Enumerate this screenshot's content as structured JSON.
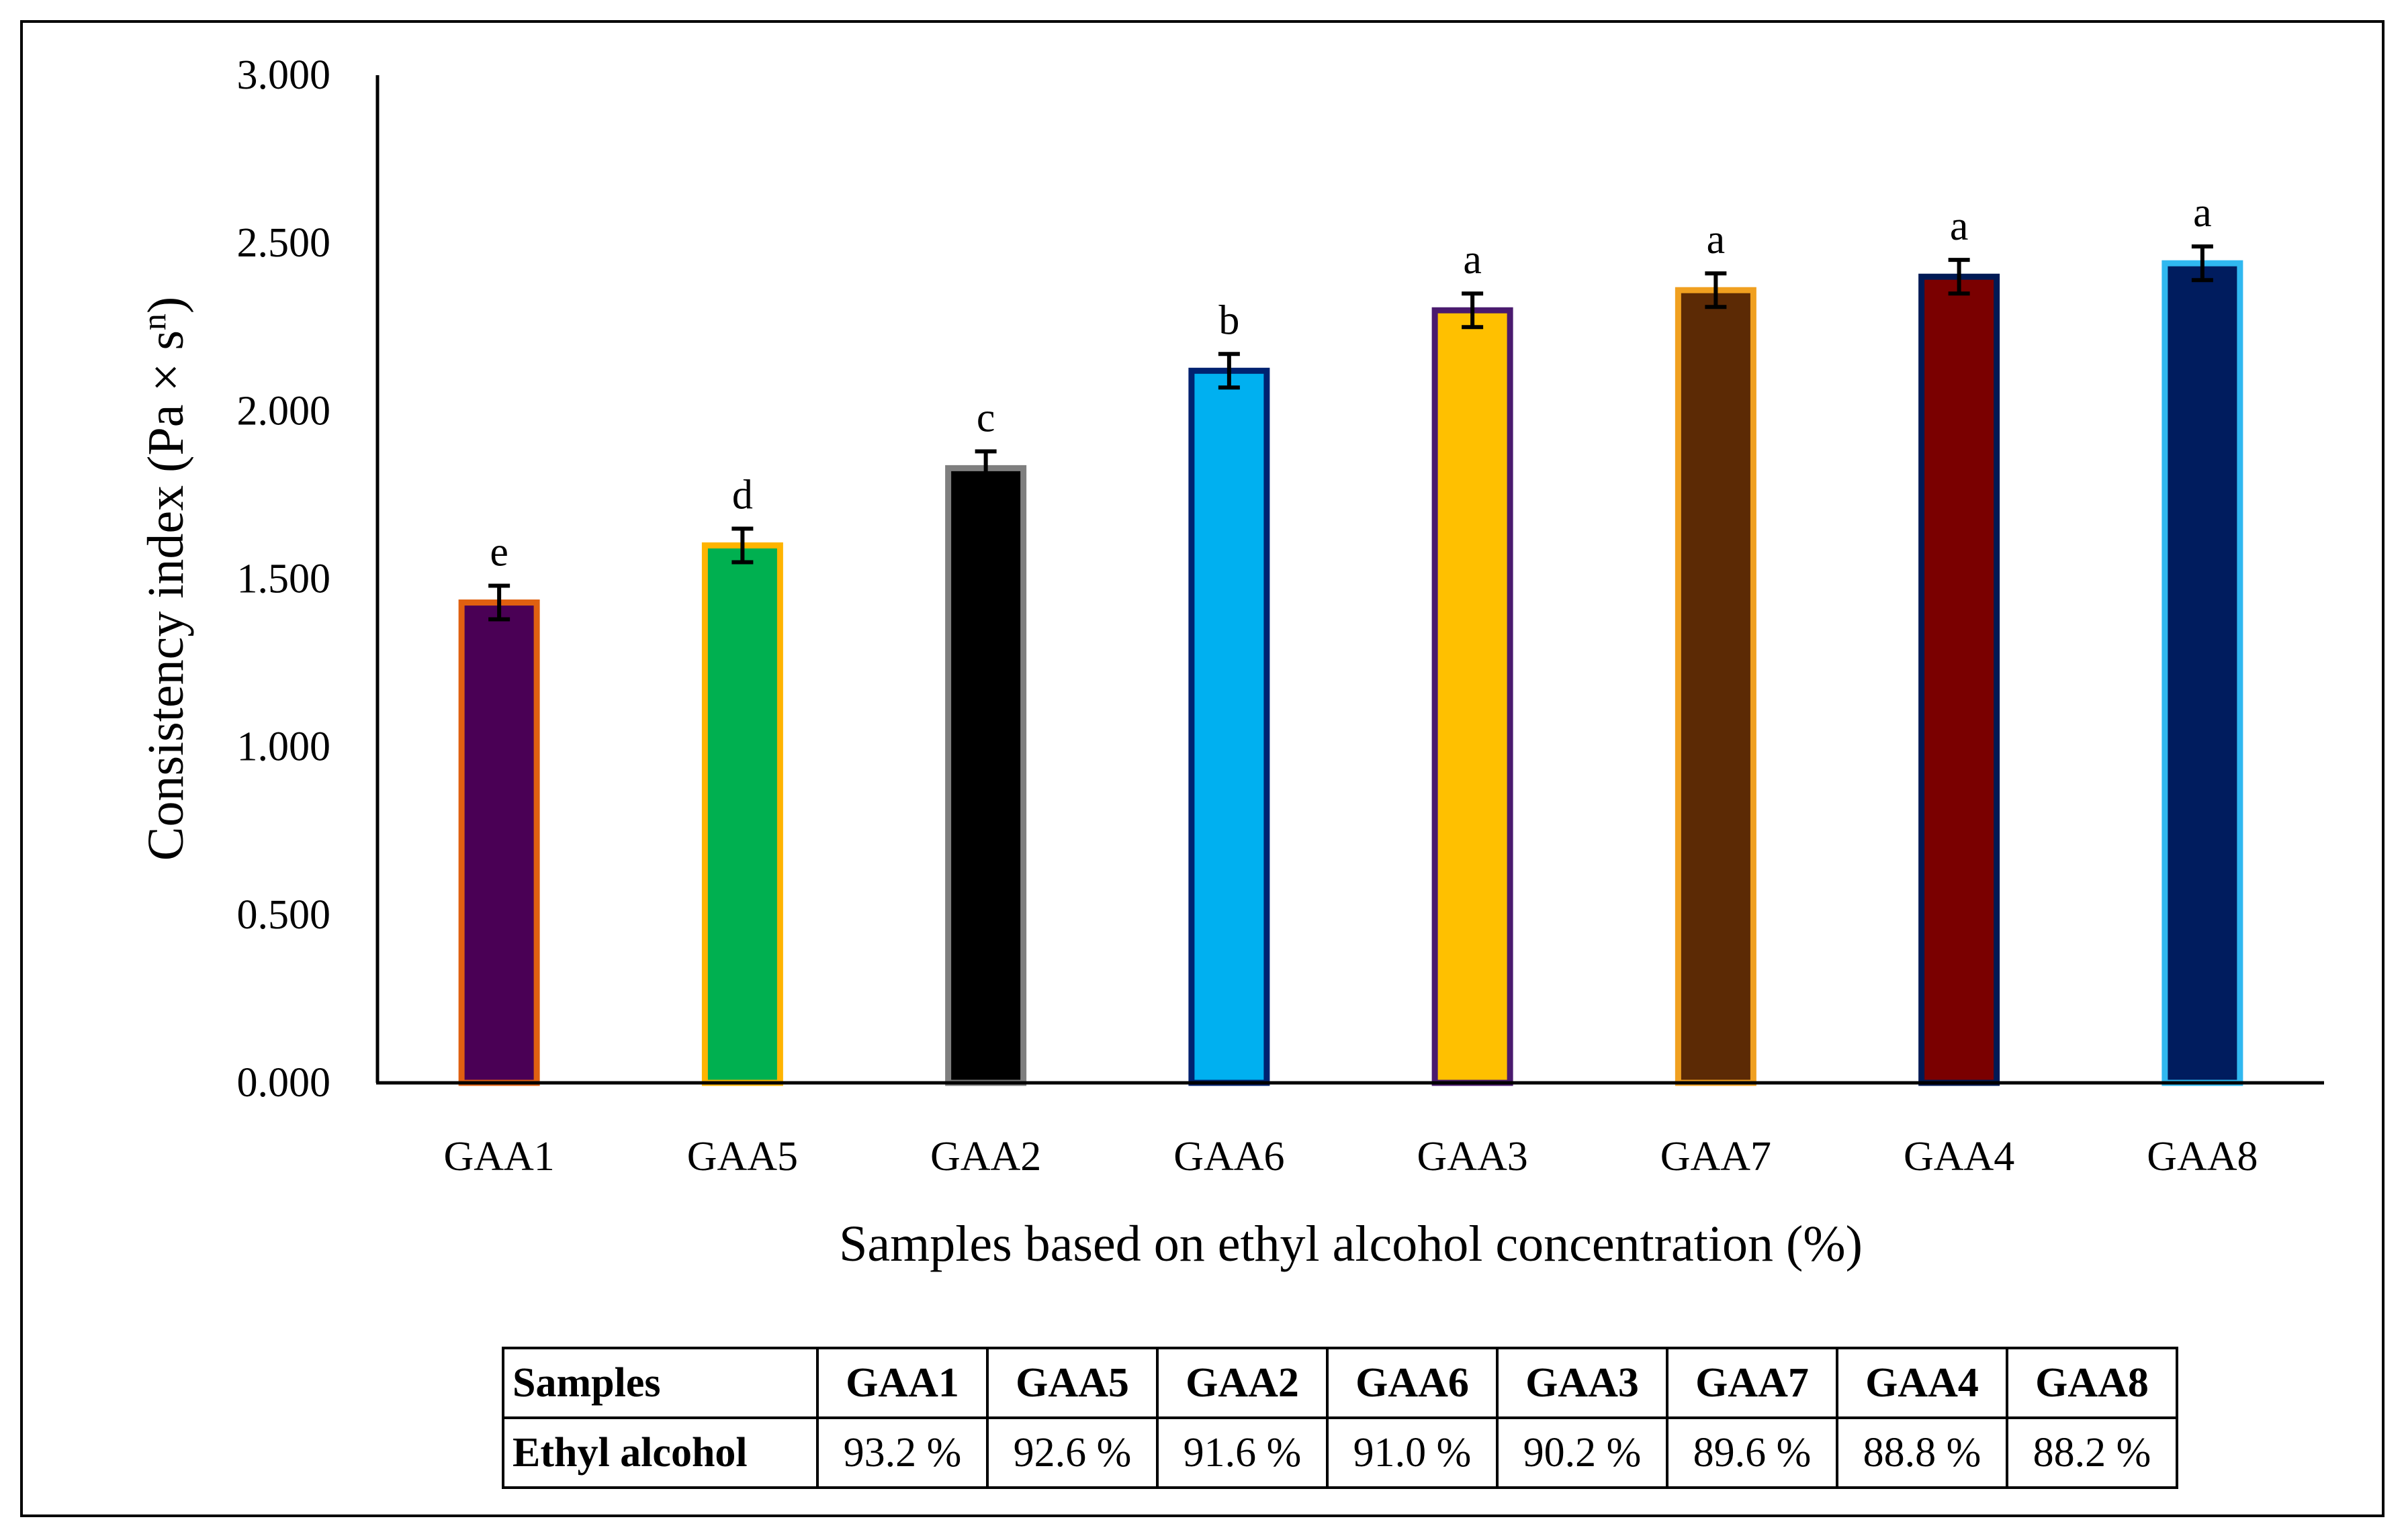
{
  "chart_data": {
    "type": "bar",
    "categories": [
      "GAA1",
      "GAA5",
      "GAA2",
      "GAA6",
      "GAA3",
      "GAA7",
      "GAA4",
      "GAA8"
    ],
    "values": [
      1.43,
      1.6,
      1.83,
      2.12,
      2.3,
      2.36,
      2.4,
      2.44
    ],
    "errors": [
      0.05,
      0.05,
      0.05,
      0.05,
      0.05,
      0.05,
      0.05,
      0.05
    ],
    "significance_letters": [
      "e",
      "d",
      "c",
      "b",
      "a",
      "a",
      "a",
      "a"
    ],
    "fill_colors": [
      "#4a0055",
      "#00b050",
      "#000000",
      "#00b0f0",
      "#ffc000",
      "#5c2a05",
      "#7a0000",
      "#001c5e"
    ],
    "border_colors": [
      "#e06010",
      "#ffb400",
      "#7f7f7f",
      "#002270",
      "#4a1a6e",
      "#f0a020",
      "#001a55",
      "#30b8f0"
    ],
    "ytick_labels": [
      "0.000",
      "0.500",
      "1.000",
      "1.500",
      "2.000",
      "2.500",
      "3.000"
    ],
    "ylim": [
      0,
      3
    ],
    "ylabel": "Consistency index (Pa × s",
    "ylabel_sup": "n",
    "ylabel_end": ")",
    "xlabel": "Samples based on ethyl alcohol concentration (%)",
    "title": "",
    "grid": false,
    "legend": "none"
  },
  "table": {
    "row1_label": "Samples",
    "row2_label": "Ethyl alcohol",
    "samples": [
      "GAA1",
      "GAA5",
      "GAA2",
      "GAA6",
      "GAA3",
      "GAA7",
      "GAA4",
      "GAA8"
    ],
    "ethyl_alcohol": [
      "93.2 %",
      "92.6 %",
      "91.6 %",
      "91.0 %",
      "90.2 %",
      "89.6 %",
      "88.8 %",
      "88.2 %"
    ]
  }
}
